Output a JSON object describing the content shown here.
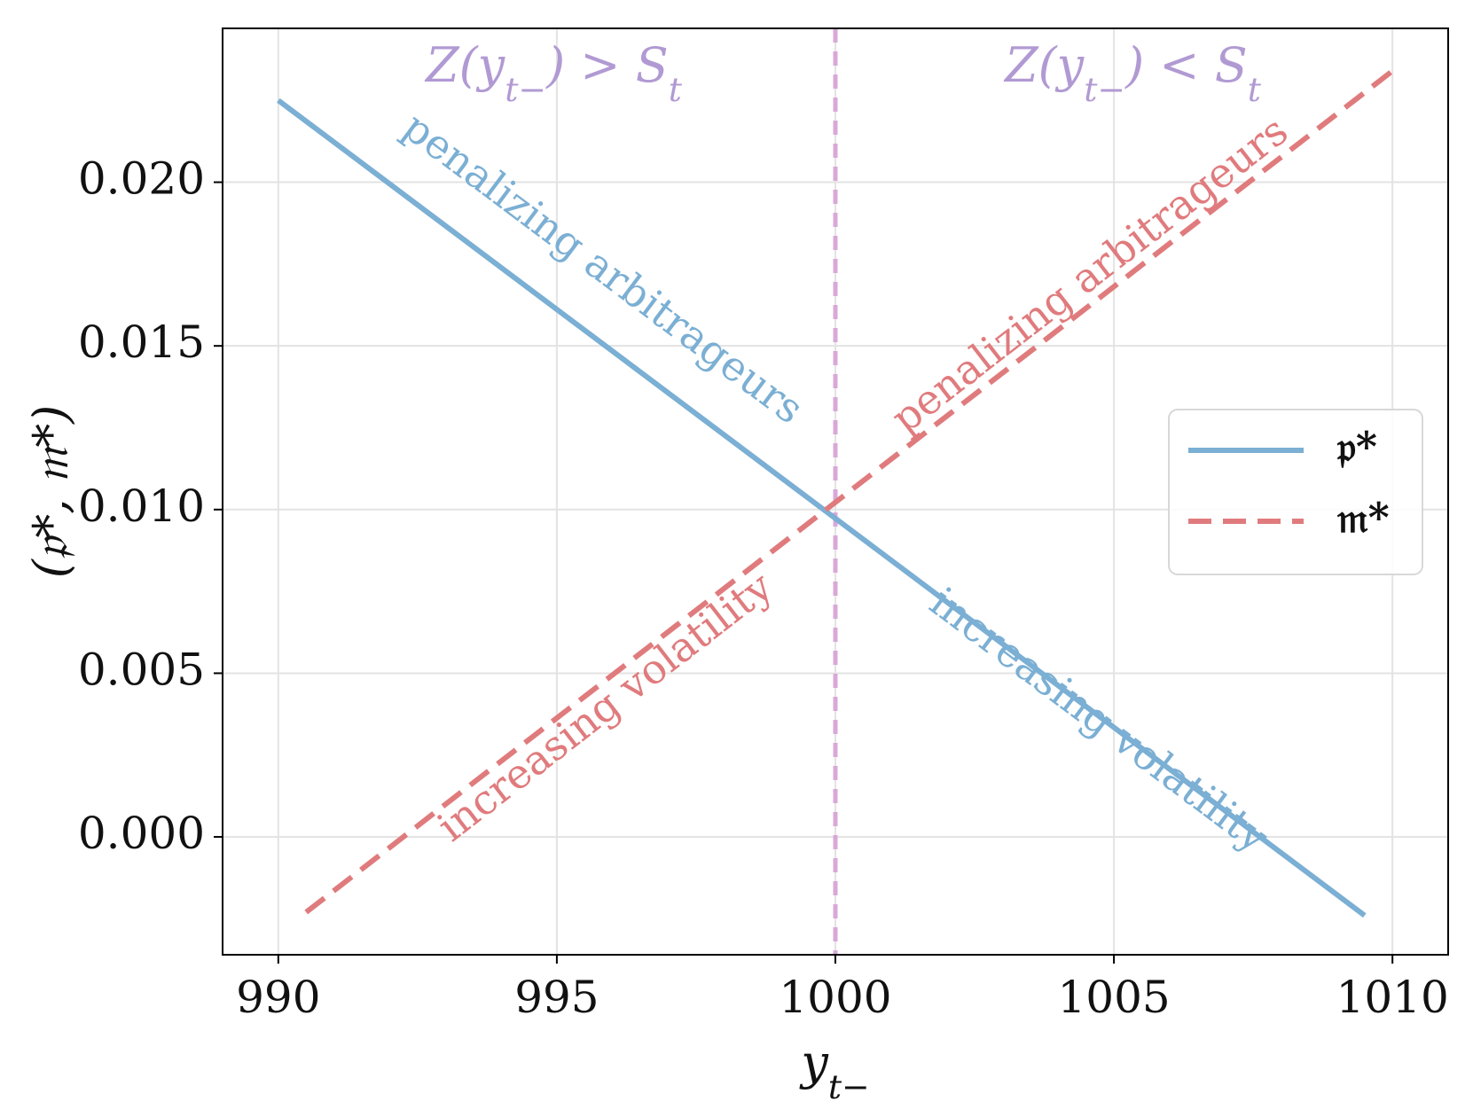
{
  "chart_data": {
    "type": "line",
    "xlabel": "y_{t−}",
    "ylabel": "(𝔭*, 𝔪*)",
    "xlim": [
      989,
      1011
    ],
    "ylim": [
      -0.0036,
      0.0247
    ],
    "x_ticks": [
      990,
      995,
      1000,
      1005,
      1010
    ],
    "y_ticks": [
      0.0,
      0.005,
      0.01,
      0.015,
      0.02
    ],
    "x_tick_labels": [
      "990",
      "995",
      "1000",
      "1005",
      "1010"
    ],
    "y_tick_labels": [
      "0.000",
      "0.005",
      "0.010",
      "0.015",
      "0.020"
    ],
    "grid": true,
    "legend_position": "center-right",
    "series": [
      {
        "name": "𝔭*",
        "style": "solid",
        "color": "#7BAFD4",
        "x": [
          990,
          1009.5
        ],
        "y": [
          0.0225,
          -0.0024
        ]
      },
      {
        "name": "𝔪*",
        "style": "dashed",
        "color": "#E07B7D",
        "x": [
          990.5,
          1010
        ],
        "y": [
          -0.0023,
          0.0234
        ]
      }
    ],
    "vline": {
      "x": 1000,
      "style": "dashed",
      "color": "#D9A8D8"
    },
    "region_labels": [
      {
        "text": "Z(y_{t−}) > S_t",
        "color": "#B19AD3"
      },
      {
        "text": "Z(y_{t−}) < S_t",
        "color": "#B19AD3"
      }
    ],
    "annotations": [
      {
        "text": "penalizing arbitrageurs",
        "color": "#7BAFD4",
        "x": 995.8,
        "y": 0.0173
      },
      {
        "text": "penalizing arbitrageurs",
        "color": "#E07B7D",
        "x": 1004.6,
        "y": 0.0171
      },
      {
        "text": "increasing volatility",
        "color": "#E07B7D",
        "x": 995.9,
        "y": 0.0039
      },
      {
        "text": "increasing volatility",
        "color": "#7BAFD4",
        "x": 1004.7,
        "y": 0.0035
      }
    ]
  }
}
